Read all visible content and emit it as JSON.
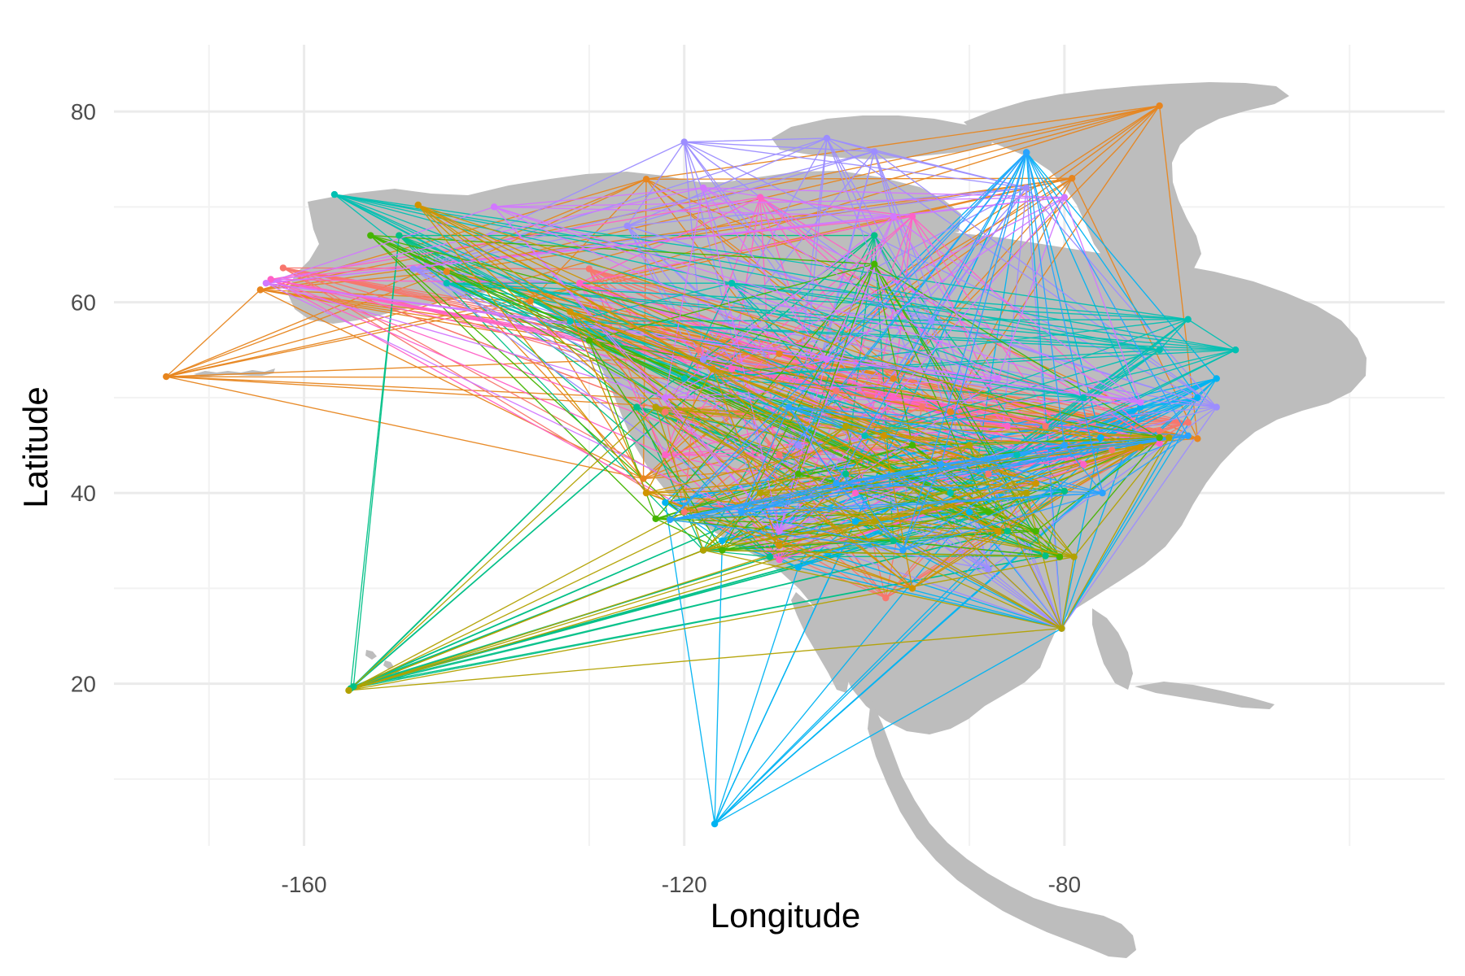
{
  "chart_data": {
    "type": "scatter",
    "subtype": "network-map",
    "title": "",
    "xlabel": "Longitude",
    "ylabel": "Latitude",
    "xlim": [
      -180,
      -40
    ],
    "ylim": [
      3,
      87
    ],
    "x_ticks": [
      -160,
      -120,
      -80
    ],
    "y_ticks": [
      20,
      40,
      60,
      80
    ],
    "grid": true,
    "legend": "none",
    "background": "#ffffff",
    "land_color": "#bdbdbd",
    "colors": [
      "#F8766D",
      "#E7851E",
      "#D09400",
      "#B2A100",
      "#89AC00",
      "#45B500",
      "#00BC51",
      "#00C087",
      "#00C0B2",
      "#00BCD6",
      "#00B3F2",
      "#29A3FF",
      "#9C8DFF",
      "#D277FF",
      "#F166E8",
      "#FF61C7"
    ],
    "series": [
      {
        "color_index": 1,
        "nodes": [
          [
            -174.5,
            52.2
          ],
          [
            -164.6,
            61.3
          ],
          [
            -124.0,
            72.9
          ],
          [
            -124.3,
            41.5
          ],
          [
            -70.0,
            80.6
          ],
          [
            -79.2,
            73.0
          ],
          [
            -110.0,
            54.6
          ],
          [
            -92.0,
            48.5
          ],
          [
            -66.0,
            45.7
          ],
          [
            -98.0,
            52.0
          ],
          [
            -136.2,
            60.1
          ],
          [
            -145.0,
            63.2
          ]
        ]
      },
      {
        "color_index": 0,
        "nodes": [
          [
            -162.2,
            63.6
          ],
          [
            -130.0,
            63.5
          ],
          [
            -118.5,
            55.0
          ],
          [
            -104.0,
            50.7
          ],
          [
            -95.0,
            49.0
          ],
          [
            -82.0,
            47.0
          ],
          [
            -70.0,
            46.5
          ],
          [
            -67.0,
            47.4
          ],
          [
            -120.0,
            38.0
          ],
          [
            -98.8,
            29.0
          ],
          [
            -110.0,
            44.0
          ],
          [
            -88.0,
            42.0
          ],
          [
            -75.0,
            44.5
          ],
          [
            -122.0,
            48.5
          ]
        ]
      },
      {
        "color_index": 7,
        "nodes": [
          [
            -155.1,
            19.5
          ],
          [
            -154.8,
            19.7
          ],
          [
            -118.0,
            34.0
          ],
          [
            -111.0,
            33.3
          ],
          [
            -98.0,
            35.0
          ],
          [
            -86.0,
            36.0
          ],
          [
            -80.0,
            40.2
          ],
          [
            -125.0,
            49.0
          ],
          [
            -150.0,
            67.0
          ],
          [
            -100.0,
            67.0
          ],
          [
            -103.0,
            42.0
          ],
          [
            -82.0,
            33.4
          ]
        ]
      },
      {
        "color_index": 10,
        "nodes": [
          [
            -116.8,
            5.3
          ],
          [
            -80.3,
            25.8
          ],
          [
            -76.2,
            45.8
          ],
          [
            -64.0,
            52.0
          ],
          [
            -122.0,
            39.0
          ],
          [
            -108.0,
            32.2
          ],
          [
            -116.0,
            35.0
          ],
          [
            -84.0,
            75.7
          ],
          [
            -90.0,
            38.0
          ],
          [
            -102.0,
            37.0
          ],
          [
            -72.0,
            49.0
          ],
          [
            -66.0,
            50.0
          ]
        ]
      },
      {
        "color_index": 12,
        "nodes": [
          [
            -148.5,
            63.5
          ],
          [
            -120.0,
            76.8
          ],
          [
            -105.0,
            77.2
          ],
          [
            -100.0,
            75.8
          ],
          [
            -84.0,
            72.0
          ],
          [
            -80.3,
            25.8
          ],
          [
            -64.0,
            49.0
          ],
          [
            -88.0,
            32.0
          ],
          [
            -108.0,
            45.0
          ],
          [
            -118.0,
            54.0
          ],
          [
            -126.0,
            68.0
          ],
          [
            -94.0,
            58.0
          ],
          [
            -110.0,
            36.0
          ]
        ]
      },
      {
        "color_index": 15,
        "nodes": [
          [
            -163.5,
            62.4
          ],
          [
            -131.0,
            62.0
          ],
          [
            -115.0,
            53.0
          ],
          [
            -98.0,
            50.0
          ],
          [
            -86.0,
            47.0
          ],
          [
            -70.0,
            45.2
          ],
          [
            -112.0,
            71.0
          ],
          [
            -96.0,
            69.0
          ],
          [
            -110.0,
            33.0
          ],
          [
            -122.0,
            44.0
          ],
          [
            -102.0,
            40.0
          ],
          [
            -78.0,
            43.0
          ]
        ]
      },
      {
        "color_index": 8,
        "nodes": [
          [
            -156.8,
            71.3
          ],
          [
            -145.0,
            62.0
          ],
          [
            -132.0,
            58.0
          ],
          [
            -120.0,
            52.0
          ],
          [
            -101.0,
            46.0
          ],
          [
            -85.0,
            44.0
          ],
          [
            -70.0,
            55.0
          ],
          [
            -67.0,
            58.2
          ],
          [
            -62.0,
            55.0
          ],
          [
            -115.0,
            62.0
          ],
          [
            -92.0,
            40.0
          ],
          [
            -78.0,
            50.0
          ]
        ]
      },
      {
        "color_index": 5,
        "nodes": [
          [
            -153.0,
            67.0
          ],
          [
            -123.0,
            37.3
          ],
          [
            -116.0,
            34.0
          ],
          [
            -108.0,
            42.0
          ],
          [
            -96.0,
            45.0
          ],
          [
            -83.0,
            36.0
          ],
          [
            -80.5,
            33.3
          ],
          [
            -70.0,
            45.8
          ],
          [
            -100.0,
            64.0
          ],
          [
            -130.0,
            56.0
          ],
          [
            -88.0,
            38.0
          ]
        ]
      },
      {
        "color_index": 3,
        "nodes": [
          [
            -155.3,
            19.3
          ],
          [
            -80.3,
            25.8
          ],
          [
            -118.0,
            34.0
          ],
          [
            -112.0,
            40.0
          ],
          [
            -103.0,
            47.0
          ],
          [
            -90.0,
            45.0
          ],
          [
            -79.0,
            33.3
          ],
          [
            -69.0,
            45.8
          ],
          [
            -123.0,
            49.0
          ],
          [
            -100.0,
            37.0
          ],
          [
            -84.0,
            40.0
          ]
        ]
      },
      {
        "color_index": 13,
        "nodes": [
          [
            -164.0,
            62.0
          ],
          [
            -140.0,
            70.0
          ],
          [
            -118.0,
            72.0
          ],
          [
            -98.0,
            69.0
          ],
          [
            -80.0,
            71.0
          ],
          [
            -122.0,
            50.0
          ],
          [
            -105.0,
            54.0
          ],
          [
            -87.0,
            52.0
          ],
          [
            -72.0,
            49.5
          ],
          [
            -110.0,
            36.0
          ]
        ]
      },
      {
        "color_index": 2,
        "nodes": [
          [
            -148.0,
            70.2
          ],
          [
            -132.0,
            59.0
          ],
          [
            -117.0,
            53.0
          ],
          [
            -99.0,
            46.0
          ],
          [
            -83.0,
            41.0
          ],
          [
            -72.0,
            44.8
          ],
          [
            -110.0,
            34.5
          ],
          [
            -96.0,
            30.0
          ],
          [
            -124.0,
            40.0
          ],
          [
            -87.0,
            36.0
          ]
        ]
      },
      {
        "color_index": 11,
        "nodes": [
          [
            -121.5,
            37.2
          ],
          [
            -114.0,
            38.0
          ],
          [
            -104.0,
            41.0
          ],
          [
            -93.0,
            43.0
          ],
          [
            -80.0,
            45.0
          ],
          [
            -67.0,
            46.0
          ],
          [
            -76.0,
            40.0
          ],
          [
            -109.0,
            49.0
          ],
          [
            -84.0,
            75.7
          ],
          [
            -97.0,
            34.0
          ]
        ]
      }
    ]
  }
}
